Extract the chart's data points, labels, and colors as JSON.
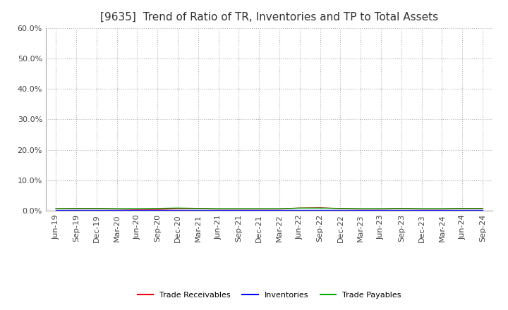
{
  "title": "[9635]  Trend of Ratio of TR, Inventories and TP to Total Assets",
  "x_labels": [
    "Jun-19",
    "Sep-19",
    "Dec-19",
    "Mar-20",
    "Jun-20",
    "Sep-20",
    "Dec-20",
    "Mar-21",
    "Jun-21",
    "Sep-21",
    "Dec-21",
    "Mar-22",
    "Jun-22",
    "Sep-22",
    "Dec-22",
    "Mar-23",
    "Jun-23",
    "Sep-23",
    "Dec-23",
    "Mar-24",
    "Jun-24",
    "Sep-24"
  ],
  "trade_receivables": [
    0.008,
    0.007,
    0.007,
    0.006,
    0.005,
    0.005,
    0.007,
    0.007,
    0.006,
    0.006,
    0.006,
    0.006,
    0.009,
    0.01,
    0.007,
    0.006,
    0.006,
    0.007,
    0.006,
    0.006,
    0.007,
    0.007
  ],
  "inventories": [
    0.003,
    0.003,
    0.003,
    0.003,
    0.003,
    0.003,
    0.003,
    0.003,
    0.003,
    0.003,
    0.003,
    0.003,
    0.003,
    0.003,
    0.003,
    0.003,
    0.003,
    0.003,
    0.003,
    0.003,
    0.003,
    0.003
  ],
  "trade_payables": [
    0.008,
    0.008,
    0.008,
    0.007,
    0.007,
    0.008,
    0.009,
    0.008,
    0.007,
    0.007,
    0.007,
    0.007,
    0.009,
    0.009,
    0.008,
    0.007,
    0.007,
    0.008,
    0.007,
    0.007,
    0.008,
    0.008
  ],
  "color_tr": "#e8000d",
  "color_inv": "#0000ff",
  "color_tp": "#00aa00",
  "ylim": [
    0.0,
    0.6
  ],
  "yticks": [
    0.0,
    0.1,
    0.2,
    0.3,
    0.4,
    0.5,
    0.6
  ],
  "legend_labels": [
    "Trade Receivables",
    "Inventories",
    "Trade Payables"
  ],
  "grid_color": "#aaaaaa",
  "background_color": "#ffffff",
  "plot_bg_color": "#ffffff",
  "title_fontsize": 11,
  "tick_fontsize": 8,
  "legend_fontsize": 8
}
